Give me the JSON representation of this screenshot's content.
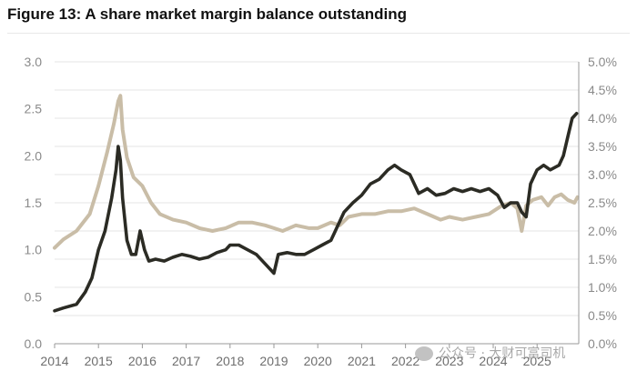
{
  "page": {
    "title": "Figure 13: A share market margin balance outstanding"
  },
  "watermark": {
    "text": "公众号 · 大财可富司机"
  },
  "colors": {
    "balance": "#2b2b24",
    "ratio": "#c9bda7",
    "grid": "#e6e6e6",
    "axis": "#999999"
  },
  "chart_data": {
    "type": "line",
    "title": "Figure 13: A share market margin balance outstanding",
    "xlabel": "",
    "ylabel": "",
    "x_ticks": [
      "2014",
      "2015",
      "2016",
      "2017",
      "2018",
      "2019",
      "2020",
      "2021",
      "2022",
      "2023",
      "2024",
      "2025"
    ],
    "xlim": [
      2014.0,
      2025.95
    ],
    "y_left": {
      "ticks": [
        "0.0",
        "0.5",
        "1.0",
        "1.5",
        "2.0",
        "2.5",
        "3.0"
      ],
      "lim": [
        0,
        3.0
      ]
    },
    "y_right": {
      "ticks": [
        "0.0%",
        "0.5%",
        "1.0%",
        "1.5%",
        "2.0%",
        "2.5%",
        "3.0%",
        "3.5%",
        "4.0%",
        "4.5%",
        "5.0%"
      ],
      "lim": [
        0,
        5.0
      ],
      "unit": "%"
    },
    "grid": "horizontal",
    "series": [
      {
        "axis": "left",
        "style": "dark",
        "points": [
          [
            2014.0,
            0.35
          ],
          [
            2014.2,
            0.38
          ],
          [
            2014.5,
            0.42
          ],
          [
            2014.7,
            0.55
          ],
          [
            2014.85,
            0.7
          ],
          [
            2015.0,
            1.0
          ],
          [
            2015.15,
            1.2
          ],
          [
            2015.3,
            1.55
          ],
          [
            2015.4,
            1.85
          ],
          [
            2015.45,
            2.1
          ],
          [
            2015.5,
            1.95
          ],
          [
            2015.55,
            1.55
          ],
          [
            2015.65,
            1.1
          ],
          [
            2015.75,
            0.95
          ],
          [
            2015.85,
            0.95
          ],
          [
            2015.95,
            1.2
          ],
          [
            2016.05,
            1.0
          ],
          [
            2016.15,
            0.88
          ],
          [
            2016.3,
            0.9
          ],
          [
            2016.5,
            0.88
          ],
          [
            2016.7,
            0.92
          ],
          [
            2016.9,
            0.95
          ],
          [
            2017.1,
            0.93
          ],
          [
            2017.3,
            0.9
          ],
          [
            2017.5,
            0.92
          ],
          [
            2017.7,
            0.97
          ],
          [
            2017.9,
            1.0
          ],
          [
            2018.0,
            1.05
          ],
          [
            2018.2,
            1.05
          ],
          [
            2018.4,
            1.0
          ],
          [
            2018.6,
            0.95
          ],
          [
            2018.8,
            0.85
          ],
          [
            2019.0,
            0.75
          ],
          [
            2019.05,
            0.85
          ],
          [
            2019.1,
            0.95
          ],
          [
            2019.3,
            0.97
          ],
          [
            2019.5,
            0.95
          ],
          [
            2019.7,
            0.95
          ],
          [
            2019.9,
            1.0
          ],
          [
            2020.1,
            1.05
          ],
          [
            2020.3,
            1.1
          ],
          [
            2020.45,
            1.25
          ],
          [
            2020.6,
            1.4
          ],
          [
            2020.8,
            1.5
          ],
          [
            2021.0,
            1.58
          ],
          [
            2021.2,
            1.7
          ],
          [
            2021.4,
            1.75
          ],
          [
            2021.6,
            1.85
          ],
          [
            2021.75,
            1.9
          ],
          [
            2021.9,
            1.85
          ],
          [
            2022.1,
            1.8
          ],
          [
            2022.3,
            1.6
          ],
          [
            2022.5,
            1.65
          ],
          [
            2022.7,
            1.58
          ],
          [
            2022.9,
            1.6
          ],
          [
            2023.1,
            1.65
          ],
          [
            2023.3,
            1.62
          ],
          [
            2023.5,
            1.65
          ],
          [
            2023.7,
            1.62
          ],
          [
            2023.9,
            1.65
          ],
          [
            2024.1,
            1.58
          ],
          [
            2024.25,
            1.45
          ],
          [
            2024.4,
            1.5
          ],
          [
            2024.55,
            1.5
          ],
          [
            2024.65,
            1.4
          ],
          [
            2024.75,
            1.35
          ],
          [
            2024.85,
            1.7
          ],
          [
            2025.0,
            1.85
          ],
          [
            2025.15,
            1.9
          ],
          [
            2025.3,
            1.85
          ],
          [
            2025.5,
            1.9
          ],
          [
            2025.6,
            2.0
          ],
          [
            2025.7,
            2.2
          ],
          [
            2025.8,
            2.4
          ],
          [
            2025.9,
            2.45
          ]
        ]
      },
      {
        "axis": "right",
        "style": "light",
        "points": [
          [
            2014.0,
            1.7
          ],
          [
            2014.2,
            1.85
          ],
          [
            2014.5,
            2.0
          ],
          [
            2014.8,
            2.3
          ],
          [
            2015.0,
            2.8
          ],
          [
            2015.2,
            3.4
          ],
          [
            2015.35,
            3.9
          ],
          [
            2015.45,
            4.3
          ],
          [
            2015.5,
            4.4
          ],
          [
            2015.55,
            3.8
          ],
          [
            2015.65,
            3.3
          ],
          [
            2015.8,
            2.95
          ],
          [
            2016.0,
            2.8
          ],
          [
            2016.2,
            2.5
          ],
          [
            2016.4,
            2.3
          ],
          [
            2016.7,
            2.2
          ],
          [
            2017.0,
            2.15
          ],
          [
            2017.3,
            2.05
          ],
          [
            2017.6,
            2.0
          ],
          [
            2017.9,
            2.05
          ],
          [
            2018.2,
            2.15
          ],
          [
            2018.5,
            2.15
          ],
          [
            2018.8,
            2.1
          ],
          [
            2019.0,
            2.05
          ],
          [
            2019.2,
            2.0
          ],
          [
            2019.5,
            2.1
          ],
          [
            2019.8,
            2.05
          ],
          [
            2020.0,
            2.05
          ],
          [
            2020.3,
            2.15
          ],
          [
            2020.5,
            2.1
          ],
          [
            2020.7,
            2.25
          ],
          [
            2021.0,
            2.3
          ],
          [
            2021.3,
            2.3
          ],
          [
            2021.6,
            2.35
          ],
          [
            2021.9,
            2.35
          ],
          [
            2022.2,
            2.4
          ],
          [
            2022.5,
            2.3
          ],
          [
            2022.8,
            2.2
          ],
          [
            2023.0,
            2.25
          ],
          [
            2023.3,
            2.2
          ],
          [
            2023.6,
            2.25
          ],
          [
            2023.9,
            2.3
          ],
          [
            2024.2,
            2.45
          ],
          [
            2024.4,
            2.5
          ],
          [
            2024.55,
            2.4
          ],
          [
            2024.65,
            2.0
          ],
          [
            2024.75,
            2.45
          ],
          [
            2024.9,
            2.55
          ],
          [
            2025.1,
            2.6
          ],
          [
            2025.25,
            2.45
          ],
          [
            2025.4,
            2.6
          ],
          [
            2025.55,
            2.65
          ],
          [
            2025.7,
            2.55
          ],
          [
            2025.85,
            2.5
          ],
          [
            2025.92,
            2.6
          ]
        ]
      }
    ]
  }
}
